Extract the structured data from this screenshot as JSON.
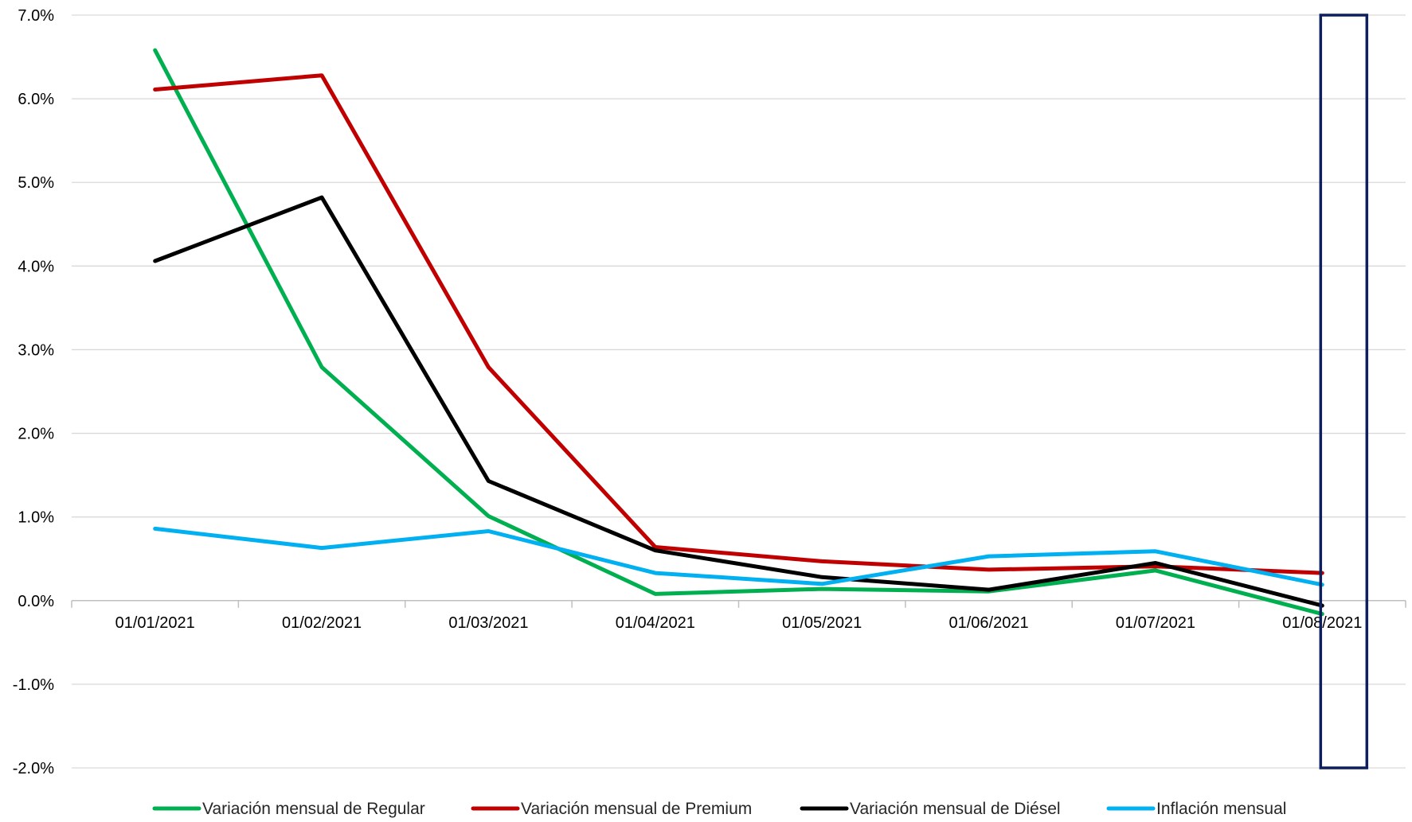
{
  "chart_data": {
    "type": "line",
    "title": "",
    "xlabel": "",
    "ylabel": "",
    "categories": [
      "01/01/2021",
      "01/02/2021",
      "01/03/2021",
      "01/04/2021",
      "01/05/2021",
      "01/06/2021",
      "01/07/2021",
      "01/08/2021"
    ],
    "ylim": [
      -0.02,
      0.07
    ],
    "yticks": [
      -0.02,
      -0.01,
      0.0,
      0.01,
      0.02,
      0.03,
      0.04,
      0.05,
      0.06,
      0.07
    ],
    "ytick_labels": [
      "-2.0%",
      "-1.0%",
      "0.0%",
      "1.0%",
      "2.0%",
      "3.0%",
      "4.0%",
      "5.0%",
      "6.0%",
      "7.0%"
    ],
    "grid": true,
    "legend_position": "bottom",
    "series": [
      {
        "name": "Variación mensual de Regular",
        "color": "#00B050",
        "values": [
          0.0658,
          0.0279,
          0.0101,
          0.0008,
          0.0014,
          0.0011,
          0.0036,
          -0.0016
        ]
      },
      {
        "name": "Variación mensual de Premium",
        "color": "#C00000",
        "values": [
          0.0611,
          0.0628,
          0.0279,
          0.0064,
          0.0047,
          0.0037,
          0.0041,
          0.0033
        ]
      },
      {
        "name": "Variación mensual de Diésel",
        "color": "#000000",
        "values": [
          0.0406,
          0.0482,
          0.0143,
          0.006,
          0.0028,
          0.0013,
          0.0045,
          -0.0006
        ]
      },
      {
        "name": "Inflación mensual",
        "color": "#00B0F0",
        "values": [
          0.0086,
          0.0063,
          0.0083,
          0.0033,
          0.002,
          0.0053,
          0.0059,
          0.0019
        ]
      }
    ],
    "annotations": [
      {
        "type": "highlight-box",
        "category": "01/08/2021",
        "y_range": [
          -0.02,
          0.07
        ],
        "color": "#0D1F5C"
      }
    ]
  }
}
